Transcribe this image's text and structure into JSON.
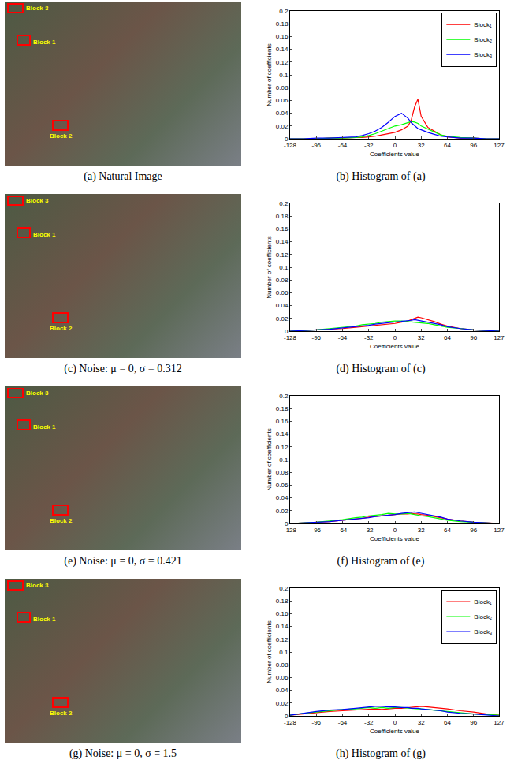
{
  "images": [
    {
      "caption": "(a) Natural Image",
      "blocks": [
        "Block 1",
        "Block 2",
        "Block 3"
      ]
    },
    {
      "caption": "(c) Noise: μ = 0, σ = 0.312",
      "blocks": [
        "Block 1",
        "Block 2",
        "Block 3"
      ]
    },
    {
      "caption": "(e) Noise: μ = 0, σ = 0.421",
      "blocks": [
        "Block 1",
        "Block 2",
        "Block 3"
      ]
    },
    {
      "caption": "(g) Noise: μ = 0, σ = 1.5",
      "blocks": [
        "Block 1",
        "Block 2",
        "Block 3"
      ]
    }
  ],
  "chart_data": [
    {
      "type": "line",
      "title": "(b) Histogram of (a)",
      "x_label": "Coefficients value",
      "y_label": "Number of coefficients",
      "xlim": [
        -128,
        127
      ],
      "xticks": [
        -128,
        -96,
        -64,
        -32,
        0,
        32,
        64,
        96,
        127
      ],
      "ylim": [
        0,
        0.2
      ],
      "yticks": [
        0,
        0.02,
        0.04,
        0.06,
        0.08,
        0.1,
        0.12,
        0.14,
        0.16,
        0.18,
        0.2
      ],
      "grid": false,
      "legend": "top right",
      "x": [
        -128,
        -112,
        -96,
        -80,
        -64,
        -48,
        -40,
        -32,
        -24,
        -16,
        -8,
        0,
        8,
        16,
        20,
        24,
        28,
        32,
        40,
        48,
        56,
        64,
        80,
        96,
        112,
        127
      ],
      "series": [
        {
          "name": "Block₁",
          "color": "#ff0000",
          "values": [
            0,
            0,
            0,
            0.001,
            0.001,
            0.002,
            0.002,
            0.003,
            0.004,
            0.006,
            0.008,
            0.01,
            0.014,
            0.02,
            0.03,
            0.05,
            0.062,
            0.035,
            0.018,
            0.012,
            0.006,
            0.003,
            0.001,
            0.001,
            0,
            0
          ]
        },
        {
          "name": "Block₂",
          "color": "#00ff00",
          "values": [
            0,
            0,
            0,
            0.001,
            0.001,
            0.002,
            0.003,
            0.005,
            0.008,
            0.012,
            0.016,
            0.02,
            0.022,
            0.025,
            0.027,
            0.026,
            0.024,
            0.02,
            0.015,
            0.01,
            0.006,
            0.004,
            0.002,
            0.001,
            0,
            0
          ]
        },
        {
          "name": "Block₃",
          "color": "#0000ff",
          "values": [
            0,
            0,
            0.001,
            0.001,
            0.002,
            0.003,
            0.005,
            0.008,
            0.012,
            0.018,
            0.026,
            0.035,
            0.04,
            0.032,
            0.025,
            0.02,
            0.016,
            0.014,
            0.01,
            0.007,
            0.004,
            0.003,
            0.001,
            0.001,
            0,
            0
          ]
        }
      ]
    },
    {
      "type": "line",
      "title": "(d) Histogram of (c)",
      "x_label": "Coefficients value",
      "y_label": "Number of coefficients",
      "xlim": [
        -128,
        127
      ],
      "xticks": [
        -128,
        -96,
        -64,
        -32,
        0,
        32,
        64,
        96,
        127
      ],
      "ylim": [
        0,
        0.2
      ],
      "yticks": [
        0,
        0.02,
        0.04,
        0.06,
        0.08,
        0.1,
        0.12,
        0.14,
        0.16,
        0.18,
        0.2
      ],
      "grid": false,
      "x": [
        -128,
        -112,
        -96,
        -80,
        -64,
        -48,
        -40,
        -32,
        -24,
        -16,
        -8,
        0,
        8,
        16,
        20,
        24,
        28,
        32,
        40,
        48,
        56,
        64,
        80,
        96,
        112,
        127
      ],
      "series": [
        {
          "color": "#ff0000",
          "values": [
            0,
            0.001,
            0.002,
            0.003,
            0.004,
            0.006,
            0.007,
            0.008,
            0.009,
            0.01,
            0.011,
            0.012,
            0.014,
            0.016,
            0.018,
            0.02,
            0.022,
            0.021,
            0.018,
            0.015,
            0.011,
            0.008,
            0.004,
            0.002,
            0.001,
            0
          ]
        },
        {
          "color": "#00ff00",
          "values": [
            0,
            0.001,
            0.002,
            0.004,
            0.006,
            0.008,
            0.01,
            0.011,
            0.012,
            0.014,
            0.015,
            0.016,
            0.016,
            0.015,
            0.015,
            0.014,
            0.014,
            0.013,
            0.012,
            0.01,
            0.008,
            0.006,
            0.004,
            0.002,
            0.001,
            0
          ]
        },
        {
          "color": "#0000ff",
          "values": [
            0,
            0.001,
            0.002,
            0.003,
            0.005,
            0.007,
            0.008,
            0.009,
            0.011,
            0.012,
            0.013,
            0.014,
            0.015,
            0.016,
            0.017,
            0.018,
            0.017,
            0.016,
            0.014,
            0.012,
            0.01,
            0.007,
            0.004,
            0.002,
            0.001,
            0
          ]
        }
      ]
    },
    {
      "type": "line",
      "title": "(f) Histogram of (e)",
      "x_label": "Coefficients value",
      "y_label": "Number of coefficients",
      "xlim": [
        -128,
        127
      ],
      "xticks": [
        -128,
        -96,
        -64,
        -32,
        0,
        32,
        64,
        96,
        127
      ],
      "ylim": [
        0,
        0.2
      ],
      "yticks": [
        0,
        0.02,
        0.04,
        0.06,
        0.08,
        0.1,
        0.12,
        0.14,
        0.16,
        0.18,
        0.2
      ],
      "grid": false,
      "x": [
        -128,
        -112,
        -96,
        -80,
        -64,
        -48,
        -40,
        -32,
        -24,
        -16,
        -8,
        0,
        8,
        16,
        20,
        24,
        28,
        32,
        40,
        48,
        56,
        64,
        80,
        96,
        112,
        127
      ],
      "series": [
        {
          "color": "#ff0000",
          "values": [
            0,
            0.001,
            0.002,
            0.003,
            0.005,
            0.007,
            0.008,
            0.01,
            0.011,
            0.012,
            0.013,
            0.014,
            0.015,
            0.015,
            0.016,
            0.015,
            0.015,
            0.014,
            0.013,
            0.011,
            0.009,
            0.007,
            0.004,
            0.002,
            0.001,
            0
          ]
        },
        {
          "color": "#00ff00",
          "values": [
            0,
            0.001,
            0.002,
            0.004,
            0.006,
            0.009,
            0.01,
            0.012,
            0.013,
            0.014,
            0.016,
            0.015,
            0.015,
            0.016,
            0.015,
            0.014,
            0.013,
            0.012,
            0.011,
            0.009,
            0.007,
            0.005,
            0.003,
            0.002,
            0.001,
            0
          ]
        },
        {
          "color": "#0000ff",
          "values": [
            0,
            0.001,
            0.002,
            0.003,
            0.005,
            0.007,
            0.008,
            0.009,
            0.011,
            0.012,
            0.013,
            0.014,
            0.016,
            0.017,
            0.018,
            0.018,
            0.017,
            0.016,
            0.014,
            0.012,
            0.01,
            0.007,
            0.004,
            0.002,
            0.001,
            0
          ]
        }
      ]
    },
    {
      "type": "line",
      "title": "(h) Histogram of (g)",
      "x_label": "Coefficients value",
      "y_label": "Number of coefficients",
      "xlim": [
        -128,
        127
      ],
      "xticks": [
        -128,
        -96,
        -64,
        -32,
        0,
        32,
        64,
        96,
        127
      ],
      "ylim": [
        0,
        0.2
      ],
      "yticks": [
        0,
        0.02,
        0.04,
        0.06,
        0.08,
        0.1,
        0.12,
        0.14,
        0.16,
        0.18,
        0.2
      ],
      "grid": false,
      "legend": "top right",
      "x": [
        -128,
        -112,
        -96,
        -80,
        -64,
        -48,
        -40,
        -32,
        -24,
        -16,
        -8,
        0,
        8,
        16,
        20,
        24,
        28,
        32,
        40,
        48,
        56,
        64,
        80,
        96,
        112,
        127
      ],
      "series": [
        {
          "name": "Block₁",
          "color": "#ff0000",
          "values": [
            0.001,
            0.003,
            0.005,
            0.007,
            0.008,
            0.009,
            0.01,
            0.01,
            0.011,
            0.01,
            0.011,
            0.012,
            0.012,
            0.013,
            0.013,
            0.014,
            0.014,
            0.015,
            0.014,
            0.013,
            0.012,
            0.011,
            0.008,
            0.006,
            0.003,
            0.001
          ]
        },
        {
          "name": "Block₂",
          "color": "#00ff00",
          "values": [
            0.001,
            0.004,
            0.006,
            0.008,
            0.01,
            0.011,
            0.012,
            0.013,
            0.012,
            0.013,
            0.012,
            0.013,
            0.013,
            0.012,
            0.012,
            0.011,
            0.011,
            0.011,
            0.01,
            0.009,
            0.008,
            0.007,
            0.005,
            0.003,
            0.002,
            0.001
          ]
        },
        {
          "name": "Block₃",
          "color": "#0000ff",
          "values": [
            0.001,
            0.004,
            0.007,
            0.009,
            0.01,
            0.012,
            0.013,
            0.014,
            0.015,
            0.015,
            0.014,
            0.014,
            0.013,
            0.013,
            0.012,
            0.012,
            0.012,
            0.011,
            0.01,
            0.009,
            0.008,
            0.006,
            0.004,
            0.003,
            0.001,
            0
          ]
        }
      ]
    }
  ]
}
